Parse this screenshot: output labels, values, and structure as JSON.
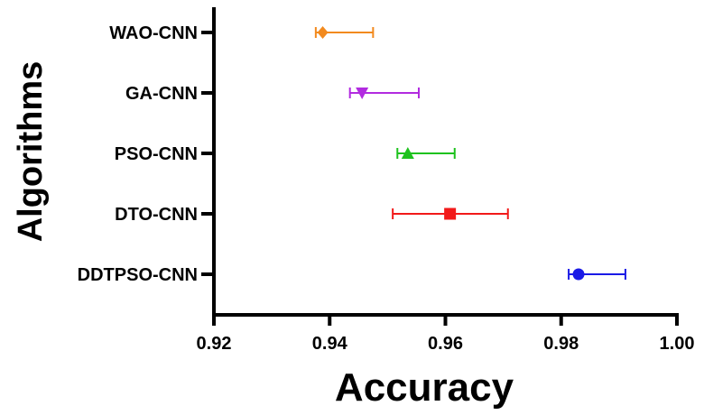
{
  "chart_data": {
    "type": "scatter",
    "title": "",
    "xlabel": "Accuracy",
    "ylabel": "Algorithms",
    "xlim": [
      0.92,
      1.0
    ],
    "x_ticks": [
      "0.92",
      "0.94",
      "0.96",
      "0.98",
      "1.00"
    ],
    "grid": false,
    "legend": "none",
    "categories": [
      "WAO-CNN",
      "GA-CNN",
      "PSO-CNN",
      "DTO-CNN",
      "DDTPSO-CNN"
    ],
    "series": [
      {
        "category": "WAO-CNN",
        "marker": "diamond",
        "color": "#F28A1E",
        "value": 0.9388,
        "err_low": 0.9376,
        "err_high": 0.9475
      },
      {
        "category": "GA-CNN",
        "marker": "triangle-down",
        "color": "#B22BE0",
        "value": 0.9456,
        "err_low": 0.9435,
        "err_high": 0.9554
      },
      {
        "category": "PSO-CNN",
        "marker": "triangle-up",
        "color": "#1EC21E",
        "value": 0.9535,
        "err_low": 0.9517,
        "err_high": 0.9616
      },
      {
        "category": "DTO-CNN",
        "marker": "square",
        "color": "#F21A1A",
        "value": 0.9608,
        "err_low": 0.9509,
        "err_high": 0.9708
      },
      {
        "category": "DDTPSO-CNN",
        "marker": "circle",
        "color": "#1A1AE6",
        "value": 0.983,
        "err_low": 0.9813,
        "err_high": 0.9911
      }
    ]
  }
}
